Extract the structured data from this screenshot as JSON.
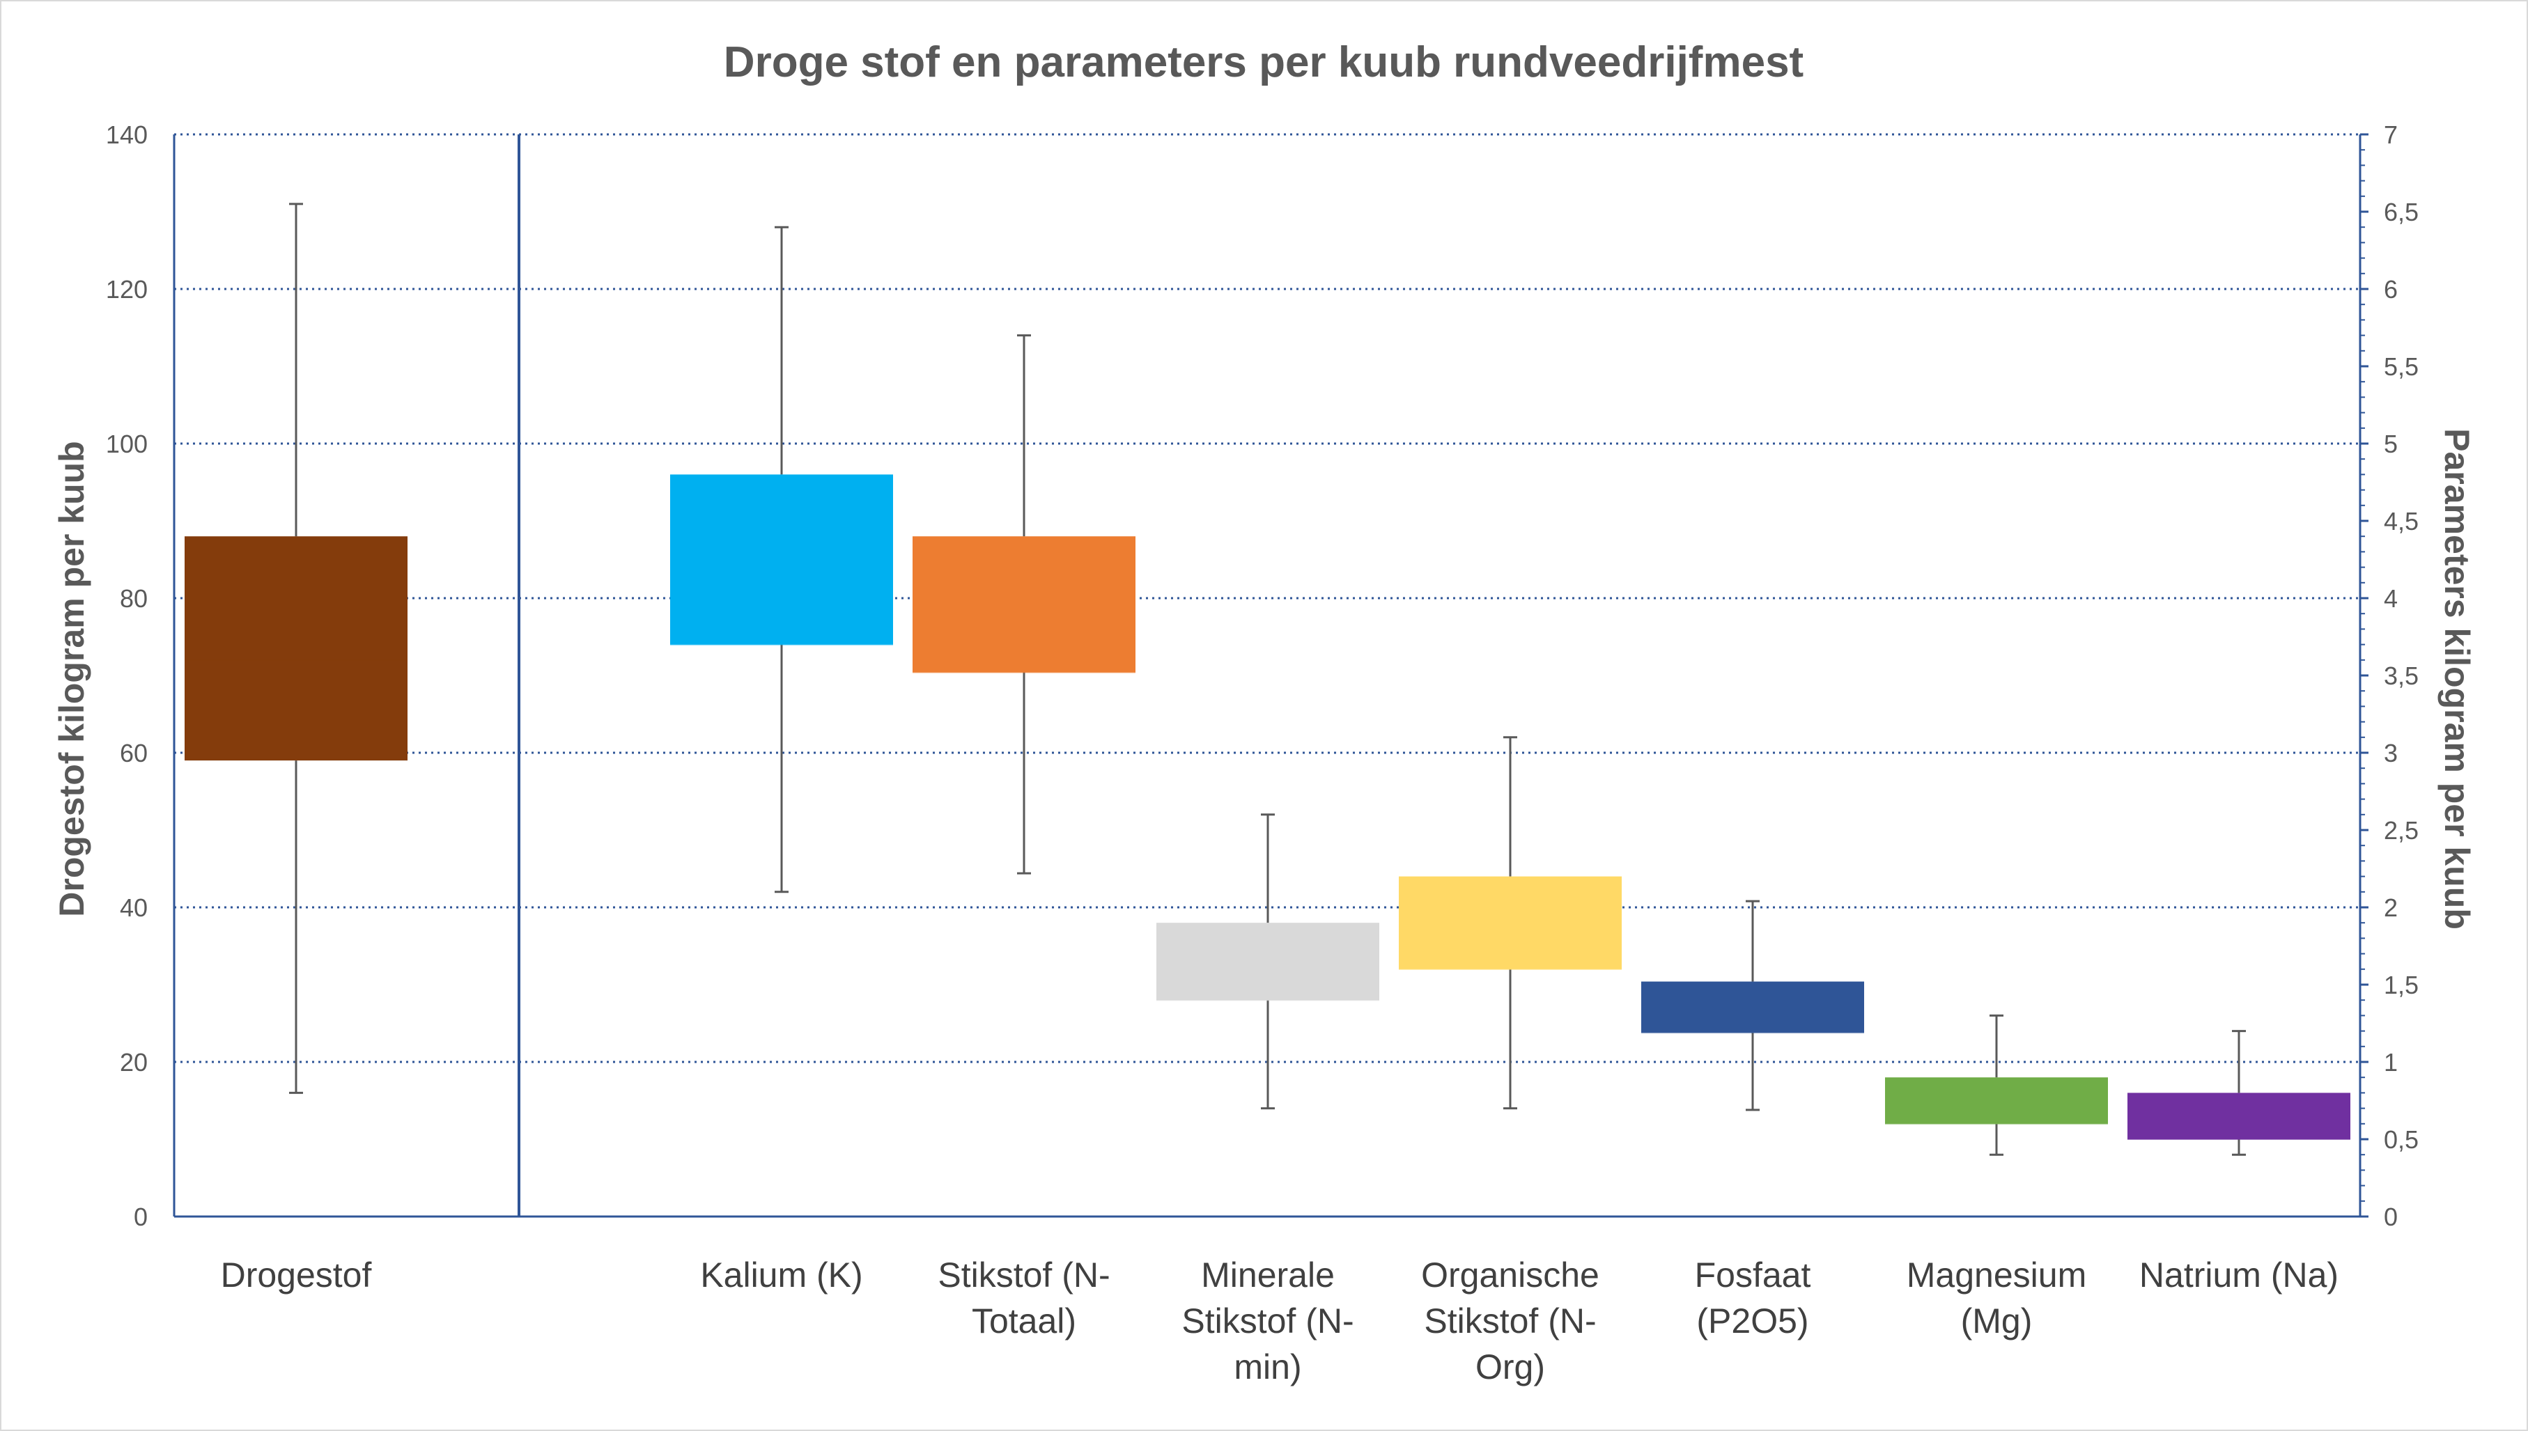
{
  "chart_data": {
    "type": "box",
    "title": "Droge stof en parameters per kuub rundveedrijfmest",
    "y_left": {
      "label": "Drogestof kilogram per kuub",
      "range": [
        0,
        140
      ],
      "ticks": [
        "0",
        "20",
        "40",
        "60",
        "80",
        "100",
        "120",
        "140"
      ]
    },
    "y_right": {
      "label": "Parameters kilogram per kuub",
      "range": [
        0,
        7
      ],
      "ticks": [
        "0",
        "0,5",
        "1",
        "1,5",
        "2",
        "2,5",
        "3",
        "3,5",
        "4",
        "4,5",
        "5",
        "5,5",
        "6",
        "6,5",
        "7"
      ]
    },
    "grid": true,
    "series": [
      {
        "category_lines": [
          "Drogestof"
        ],
        "axis": "left",
        "min": 16,
        "q1": 59,
        "median": 72,
        "q3": 88,
        "max": 131,
        "color": "#843C0C"
      },
      {
        "category_lines": [
          "Kalium (K)"
        ],
        "axis": "right",
        "min": 2.1,
        "q1": 3.7,
        "median": 3.7,
        "q3": 4.8,
        "max": 6.4,
        "color": "#00B0F0"
      },
      {
        "category_lines": [
          "Stikstof (N-",
          "Totaal)"
        ],
        "axis": "right",
        "min": 2.22,
        "q1": 3.52,
        "median": 3.52,
        "q3": 4.4,
        "max": 5.7,
        "color": "#ED7D31"
      },
      {
        "category_lines": [
          "Minerale",
          "Stikstof (N-",
          "min)"
        ],
        "axis": "right",
        "min": 0.7,
        "q1": 1.4,
        "median": 1.4,
        "q3": 1.9,
        "max": 2.6,
        "color": "#D9D9D9"
      },
      {
        "category_lines": [
          "Organische",
          "Stikstof (N-",
          "Org)"
        ],
        "axis": "right",
        "min": 0.7,
        "q1": 1.6,
        "median": 1.6,
        "q3": 2.2,
        "max": 3.1,
        "color": "#FFD966"
      },
      {
        "category_lines": [
          "Fosfaat",
          "(P2O5)"
        ],
        "axis": "right",
        "min": 0.69,
        "q1": 1.19,
        "median": 1.19,
        "q3": 1.52,
        "max": 2.04,
        "color": "#2F5597"
      },
      {
        "category_lines": [
          "Magnesium",
          "(Mg)"
        ],
        "axis": "right",
        "min": 0.4,
        "q1": 0.6,
        "median": 0.6,
        "q3": 0.9,
        "max": 1.3,
        "color": "#70AD47"
      },
      {
        "category_lines": [
          "Natrium (Na)"
        ],
        "axis": "right",
        "min": 0.4,
        "q1": 0.5,
        "median": 0.5,
        "q3": 0.8,
        "max": 1.2,
        "color": "#7030A0"
      }
    ]
  }
}
